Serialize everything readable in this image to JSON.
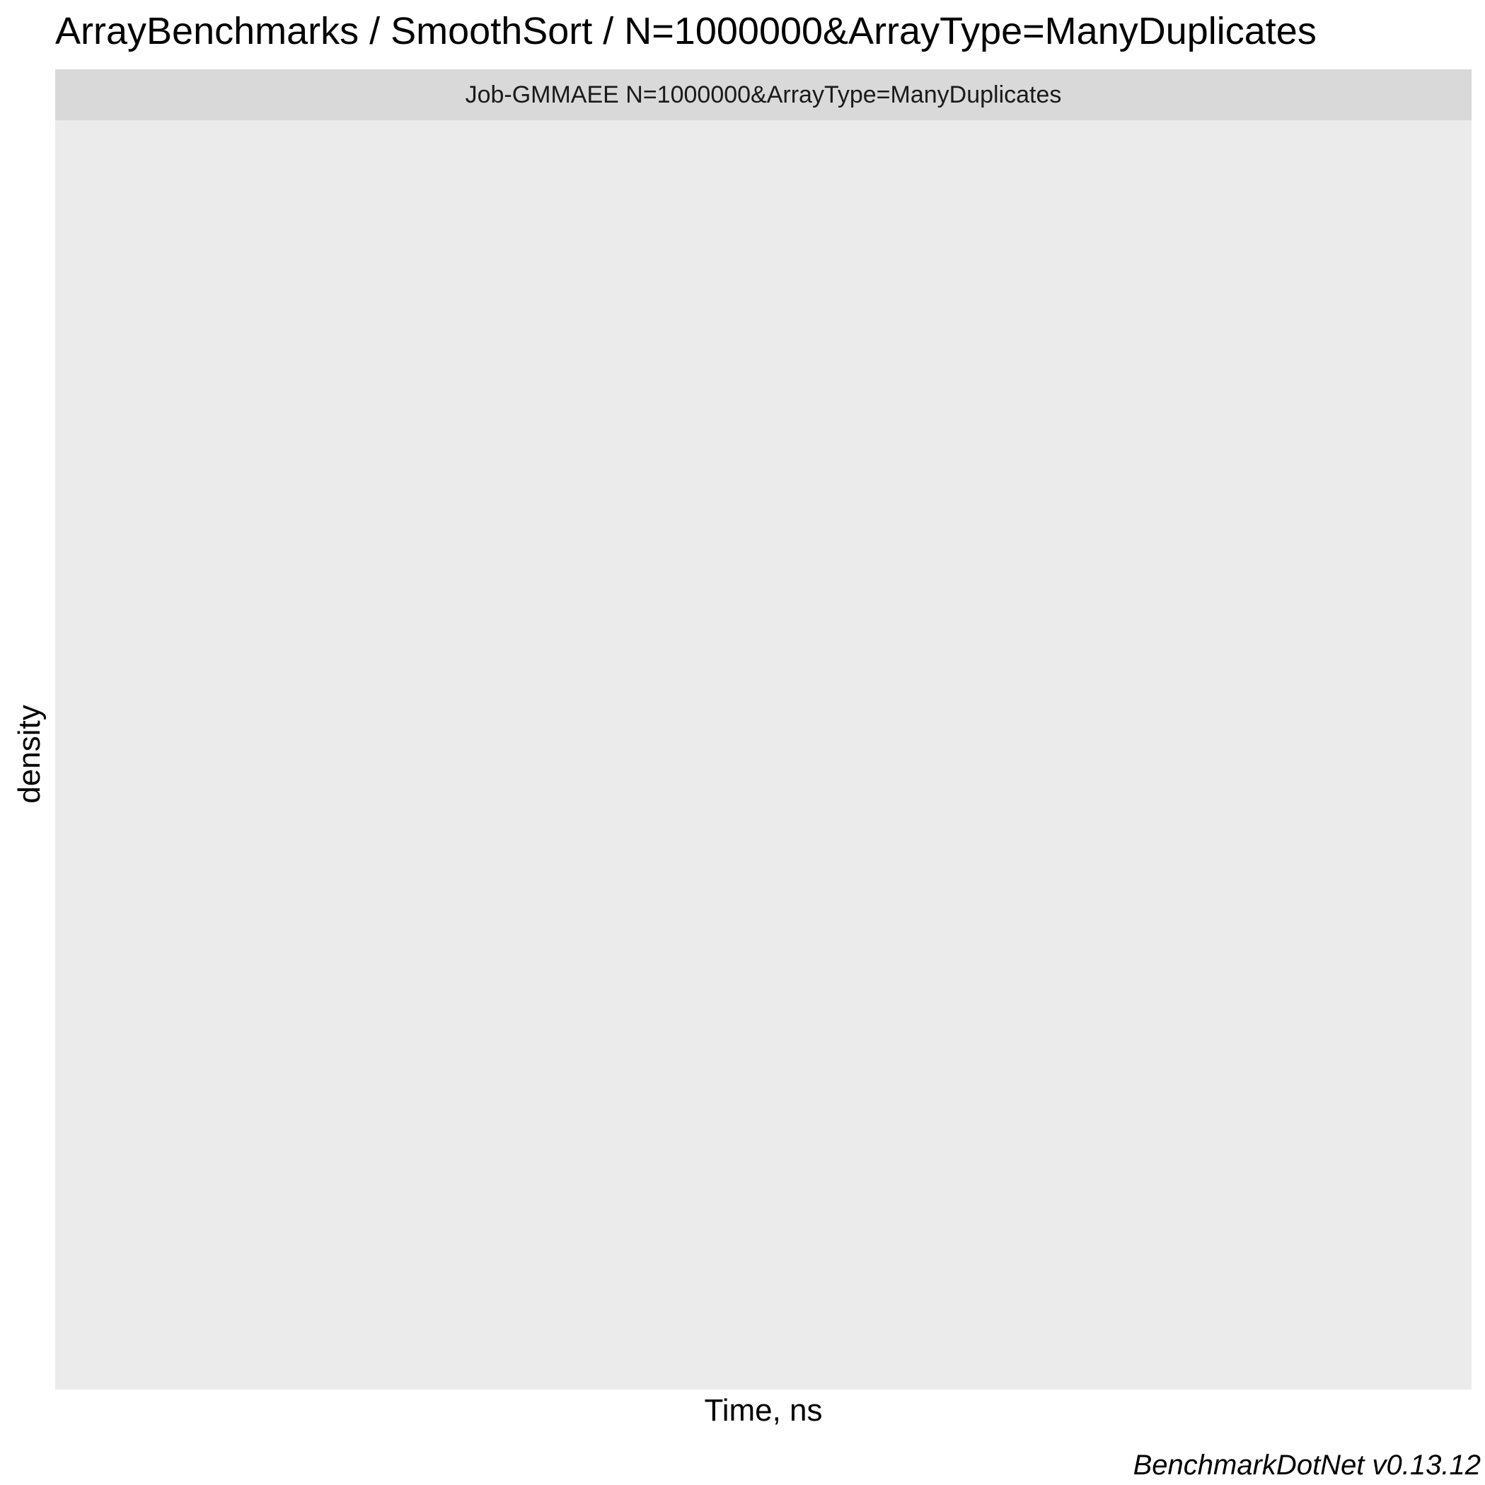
{
  "chart_data": {
    "type": "area",
    "title": "ArrayBenchmarks / SmoothSort / N=1000000&ArrayType=ManyDuplicates",
    "facet_label": "Job-GMMAEE N=1000000&ArrayType=ManyDuplicates",
    "xlabel": "Time, ns",
    "ylabel": "density",
    "caption": "BenchmarkDotNet v0.13.12",
    "series": [],
    "grid": false,
    "legend": "none",
    "colors": {
      "panel_background": "#ebebeb",
      "strip_background": "#d9d9d9"
    }
  }
}
